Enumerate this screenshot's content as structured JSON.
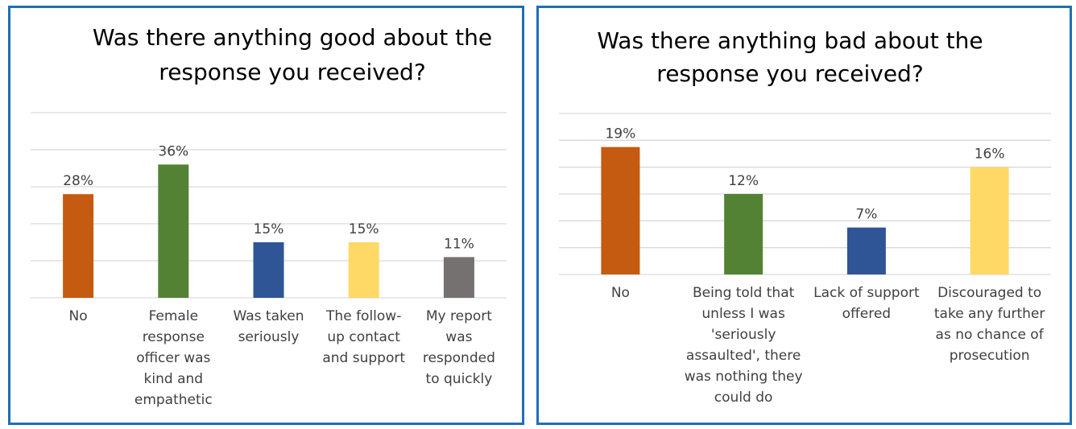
{
  "chart_data": [
    {
      "type": "bar",
      "title": [
        "Was there anything good about the",
        "response you received?"
      ],
      "categories": [
        [
          "No"
        ],
        [
          "Female",
          "response",
          "officer was",
          "kind and",
          "empathetic"
        ],
        [
          "Was taken",
          "seriously"
        ],
        [
          "The follow-",
          "up contact",
          "and support"
        ],
        [
          "My report",
          "was",
          "responded",
          "to quickly"
        ]
      ],
      "values": [
        28,
        36,
        15,
        15,
        11
      ],
      "labels": [
        "28%",
        "36%",
        "15%",
        "15%",
        "11%"
      ],
      "colors": [
        "#c55a11",
        "#548235",
        "#2f5597",
        "#ffd966",
        "#767171"
      ],
      "ylim": [
        0,
        50
      ],
      "grid": true
    },
    {
      "type": "bar",
      "title": [
        "Was there anything bad about the",
        "response you received?"
      ],
      "categories": [
        [
          "No"
        ],
        [
          "Being told that",
          "unless I was",
          "'seriously",
          "assaulted', there",
          "was nothing they",
          "could do"
        ],
        [
          "Lack of support",
          "offered"
        ],
        [
          "Discouraged to",
          "take any further",
          "as no chance of",
          "prosecution"
        ]
      ],
      "values": [
        19,
        12,
        7,
        16
      ],
      "labels": [
        "19%",
        "12%",
        "7%",
        "16%"
      ],
      "colors": [
        "#c55a11",
        "#548235",
        "#2f5597",
        "#ffd966"
      ],
      "ylim": [
        0,
        24
      ],
      "grid": true
    }
  ]
}
